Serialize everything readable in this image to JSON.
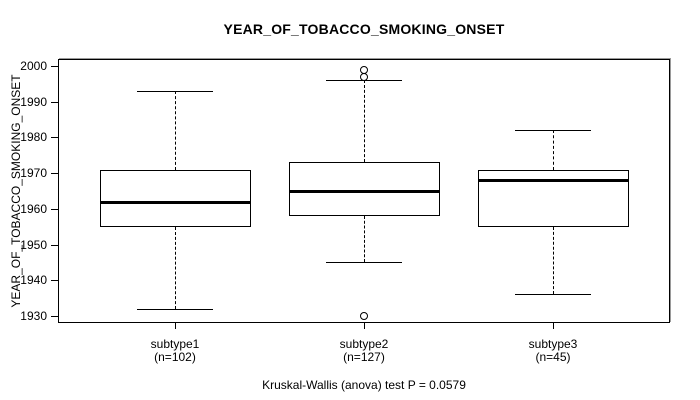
{
  "chart_data": {
    "type": "boxplot",
    "title": "YEAR_OF_TOBACCO_SMOKING_ONSET",
    "ylabel": "YEAR_OF_TOBACCO_SMOKING_ONSET",
    "caption": "Kruskal-Wallis (anova) test P = 0.0579",
    "test": {
      "name": "Kruskal-Wallis (anova)",
      "p_value": "0.0579"
    },
    "ylim": [
      1928,
      2002
    ],
    "yticks": [
      1930,
      1940,
      1950,
      1960,
      1970,
      1980,
      1990,
      2000
    ],
    "grid": false,
    "ink_color": "#000000",
    "background_color": "#ffffff",
    "groups": [
      {
        "label": "subtype1",
        "sublabel": "(n=102)",
        "n": 102,
        "lower_whisker": 1932,
        "q1": 1955,
        "median": 1962,
        "q3": 1971,
        "upper_whisker": 1993,
        "outliers": []
      },
      {
        "label": "subtype2",
        "sublabel": "(n=127)",
        "n": 127,
        "lower_whisker": 1945,
        "q1": 1958,
        "median": 1965,
        "q3": 1973,
        "upper_whisker": 1996,
        "outliers": [
          1930,
          1997,
          1999
        ]
      },
      {
        "label": "subtype3",
        "sublabel": "(n=45)",
        "n": 45,
        "lower_whisker": 1936,
        "q1": 1955,
        "median": 1968,
        "q3": 1971,
        "upper_whisker": 1982,
        "outliers": []
      }
    ]
  }
}
